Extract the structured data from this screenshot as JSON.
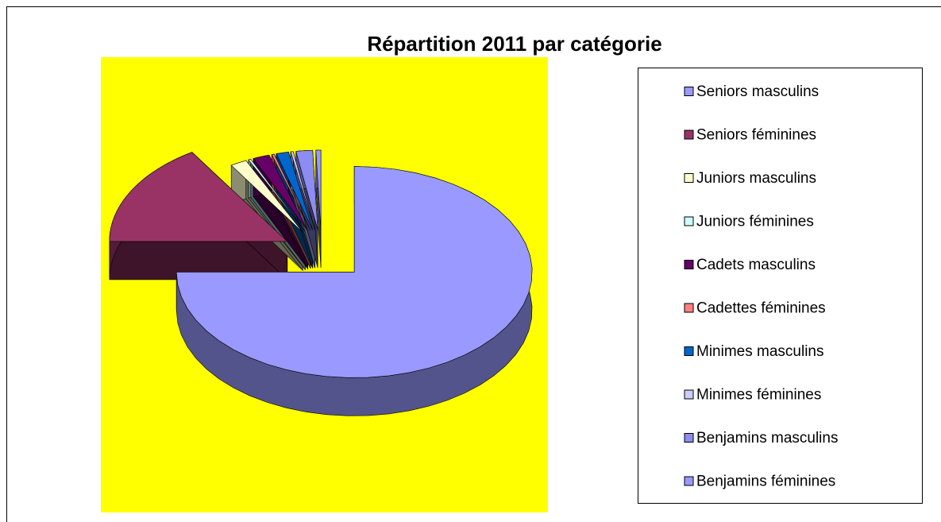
{
  "chart_data": {
    "type": "pie",
    "title": "Répartition 2011 par catégorie",
    "categories": [
      "Seniors masculins",
      "Seniors féminines",
      "Juniors masculins",
      "Juniors féminines",
      "Cadets masculins",
      "Cadettes féminines",
      "Minimes masculins",
      "Minimes féminines",
      "Benjamins masculins",
      "Benjamins féminines"
    ],
    "values": [
      75,
      16,
      2,
      0.3,
      2,
      0.3,
      1.5,
      0.3,
      2,
      0.6
    ],
    "colors": [
      "#9999ff",
      "#993366",
      "#ffffcc",
      "#ccffff",
      "#660066",
      "#ff8080",
      "#0066cc",
      "#ccccff",
      "#8c8cf2",
      "#9999ff"
    ],
    "plot_background": "#ffff00"
  }
}
